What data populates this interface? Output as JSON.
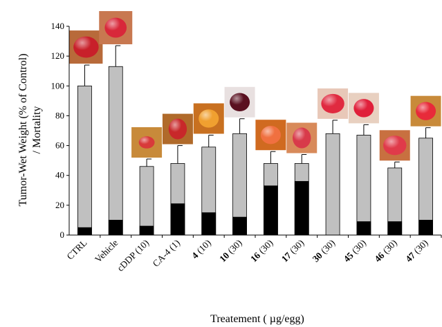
{
  "chart_data": {
    "type": "bar",
    "ylabel_line1": "Tumor-Wet Weight (% of Control)",
    "ylabel_line2": "/ Mortality",
    "xlabel": "Treatement ( µg/egg)",
    "ylim": [
      0,
      140
    ],
    "yticks": [
      0,
      20,
      40,
      60,
      80,
      100,
      120,
      140
    ],
    "categories": [
      {
        "bold": "",
        "rest": "CTRL"
      },
      {
        "bold": "",
        "rest": "Vehicle"
      },
      {
        "bold": "",
        "rest": "cDDP (10)"
      },
      {
        "bold": "",
        "rest": "CA-4 (1)"
      },
      {
        "bold": "4",
        "rest": " (10)"
      },
      {
        "bold": "10",
        "rest": " (30)"
      },
      {
        "bold": "16",
        "rest": " (30)"
      },
      {
        "bold": "17",
        "rest": " (30)"
      },
      {
        "bold": "30",
        "rest": " (30)"
      },
      {
        "bold": "45",
        "rest": " (30)"
      },
      {
        "bold": "46",
        "rest": " (30)"
      },
      {
        "bold": "47",
        "rest": " (30)"
      }
    ],
    "series": [
      {
        "name": "Tumor-Wet Weight",
        "color": "#c0c0c0",
        "values": [
          100,
          113,
          46,
          48,
          59,
          68,
          48,
          48,
          68,
          67,
          45,
          65
        ],
        "error": [
          14,
          14,
          5,
          12,
          8,
          10,
          8,
          6,
          9,
          7,
          4,
          7
        ]
      },
      {
        "name": "Mortality",
        "color": "#000000",
        "values": [
          5,
          10,
          6,
          21,
          15,
          12,
          33,
          36,
          0,
          9,
          9,
          10
        ]
      }
    ],
    "tumor_images": [
      {
        "fill": "#c8202a",
        "bg": "#b86a3a",
        "shape": "blob"
      },
      {
        "fill": "#d8283a",
        "bg": "#c87850",
        "shape": "round"
      },
      {
        "fill": "#d83a3a",
        "bg": "#c88a3a",
        "shape": "small"
      },
      {
        "fill": "#c8282a",
        "bg": "#b06a2a",
        "shape": "kidney"
      },
      {
        "fill": "#f0a030",
        "bg": "#c87020",
        "shape": "round"
      },
      {
        "fill": "#5a1020",
        "bg": "#e8e0e0",
        "shape": "round"
      },
      {
        "fill": "#f07040",
        "bg": "#d06a20",
        "shape": "round"
      },
      {
        "fill": "#d83a4a",
        "bg": "#d88a5a",
        "shape": "kidney"
      },
      {
        "fill": "#e02a40",
        "bg": "#e8c8b8",
        "shape": "blob"
      },
      {
        "fill": "#e0203a",
        "bg": "#e8d0c0",
        "shape": "round"
      },
      {
        "fill": "#e03a4a",
        "bg": "#c87040",
        "shape": "blob"
      },
      {
        "fill": "#e82a3a",
        "bg": "#c88a3a",
        "shape": "round"
      }
    ]
  }
}
